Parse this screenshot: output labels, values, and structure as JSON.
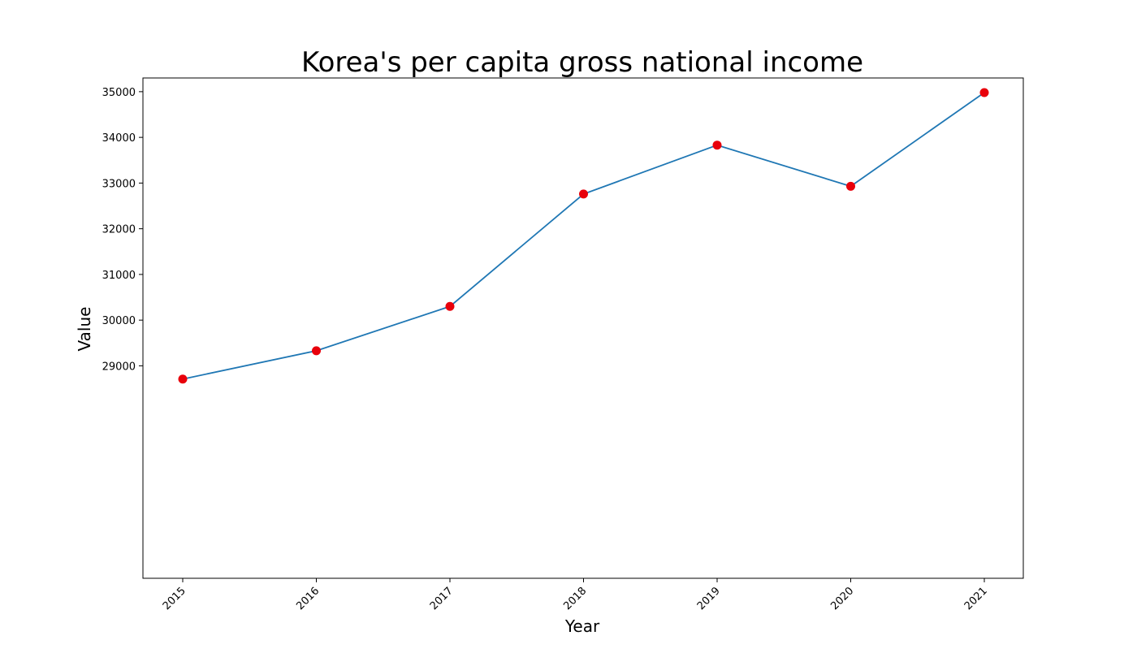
{
  "chart_data": {
    "type": "line",
    "title": "Korea's per capita gross national income",
    "xlabel": "Year",
    "ylabel": "Value",
    "categories": [
      "2015",
      "2016",
      "2017",
      "2018",
      "2019",
      "2020",
      "2021"
    ],
    "series": [
      {
        "values": [
          28710,
          29330,
          30300,
          32760,
          33830,
          32930,
          34980
        ],
        "line_color": "#1f77b4",
        "marker_color": "#e8000b"
      }
    ],
    "yticks": [
      29000,
      30000,
      31000,
      32000,
      33000,
      34000,
      35000
    ],
    "ylim": [
      24350,
      35300
    ],
    "grid": false,
    "legend": "none"
  }
}
